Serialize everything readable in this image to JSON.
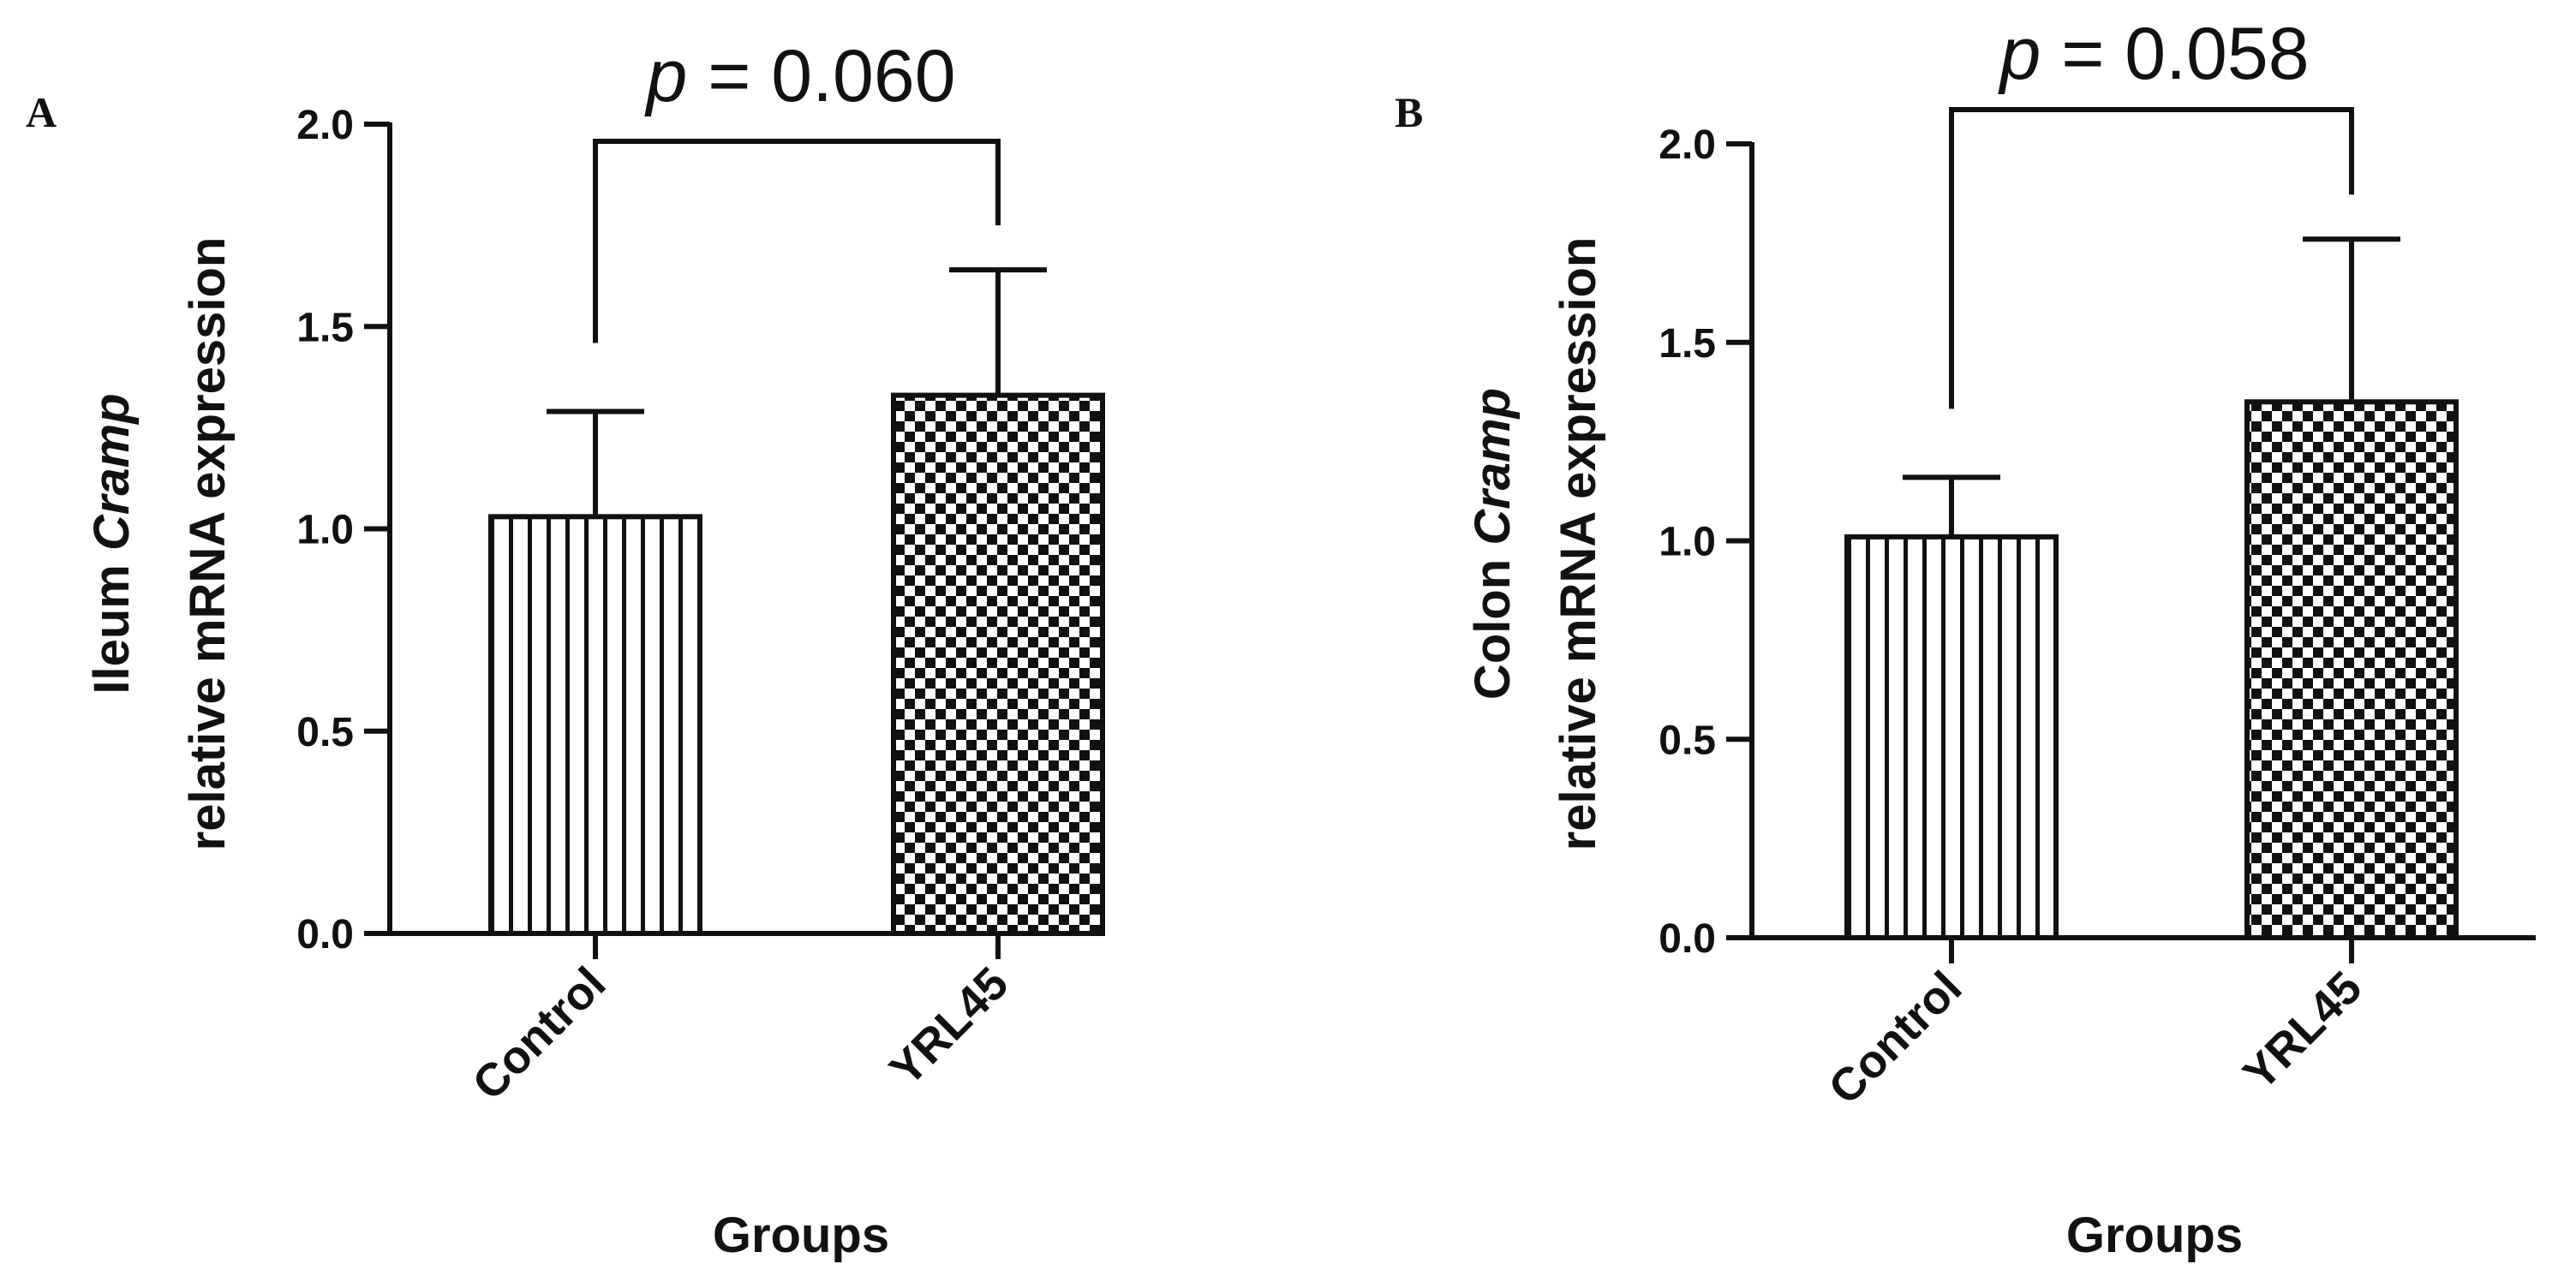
{
  "chart_data": [
    {
      "type": "bar",
      "panel": "A",
      "categories": [
        "Control",
        "YRL45"
      ],
      "values": [
        1.03,
        1.33
      ],
      "errors": [
        0.26,
        0.31
      ],
      "patterns": [
        "vertical-stripes",
        "checkerboard"
      ],
      "ylim": [
        0,
        2.0
      ],
      "yticks": [
        "0.0",
        "0.5",
        "1.0",
        "1.5",
        "2.0"
      ],
      "ylabel_prefix": "Ileum ",
      "ylabel_gene": "Cramp",
      "ylabel_line2": "relative mRNA expression",
      "xlabel": "Groups",
      "annotation": {
        "p_symbol": "p",
        "p_value": " = 0.060"
      }
    },
    {
      "type": "bar",
      "panel": "B",
      "categories": [
        "Control",
        "YRL45"
      ],
      "values": [
        1.01,
        1.35
      ],
      "errors": [
        0.15,
        0.41
      ],
      "patterns": [
        "vertical-stripes",
        "checkerboard"
      ],
      "ylim": [
        0,
        2.0
      ],
      "yticks": [
        "0.0",
        "0.5",
        "1.0",
        "1.5",
        "2.0"
      ],
      "ylabel_prefix": "Colon ",
      "ylabel_gene": "Cramp",
      "ylabel_line2": "relative mRNA expression",
      "xlabel": "Groups",
      "annotation": {
        "p_symbol": "p",
        "p_value": " = 0.058"
      }
    }
  ],
  "colors": {
    "ink": "#111111",
    "background": "#ffffff"
  }
}
